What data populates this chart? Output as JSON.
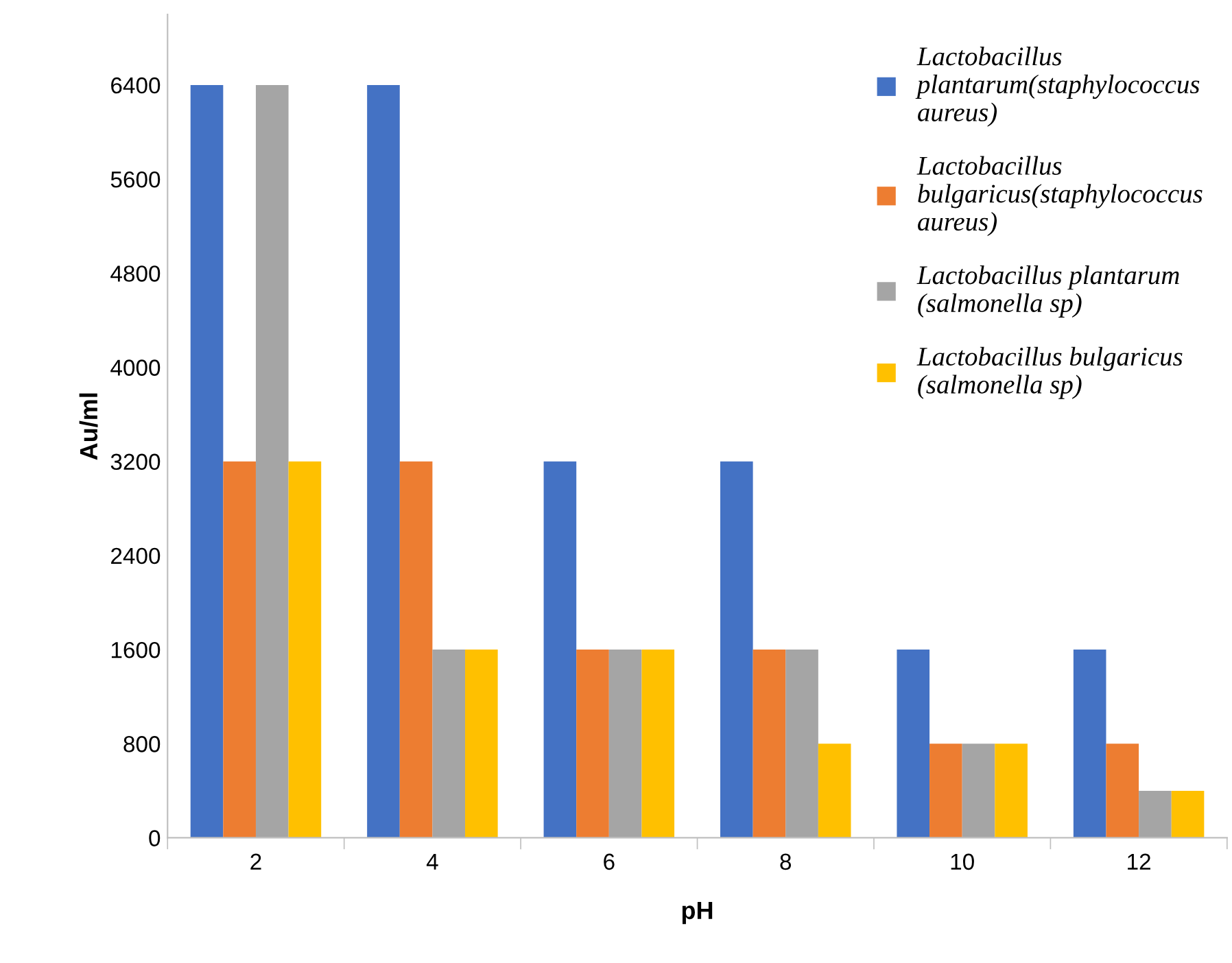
{
  "chart_data": {
    "type": "bar",
    "xlabel": "pH",
    "ylabel": "Au/ml",
    "categories": [
      "2",
      "4",
      "6",
      "8",
      "10",
      "12"
    ],
    "series": [
      {
        "name": "Lactobacillus\nplantarum(staphylococcus\naureus)",
        "color": "#4472c4",
        "values": [
          6400,
          6400,
          3200,
          3200,
          1600,
          1600
        ]
      },
      {
        "name": "Lactobacillus\nbulgaricus(staphylococcus\naureus)",
        "color": "#ed7d31",
        "values": [
          3200,
          3200,
          1600,
          1600,
          800,
          800
        ]
      },
      {
        "name": "Lactobacillus plantarum\n(salmonella sp)",
        "color": "#a5a5a5",
        "values": [
          6400,
          1600,
          1600,
          1600,
          800,
          400
        ]
      },
      {
        "name": "Lactobacillus bulgaricus\n(salmonella sp)",
        "color": "#ffc000",
        "values": [
          3200,
          1600,
          1600,
          800,
          800,
          400
        ]
      }
    ],
    "ylim": [
      0,
      7000
    ],
    "yticks": [
      0,
      800,
      1600,
      2400,
      3200,
      4000,
      4800,
      5600,
      6400
    ],
    "grid": false,
    "legend": "top right"
  }
}
